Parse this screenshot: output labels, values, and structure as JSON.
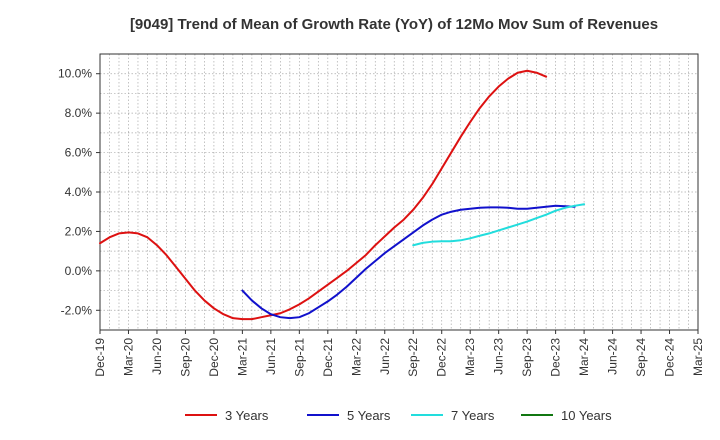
{
  "chart_data": {
    "type": "line",
    "title": "[9049]  Trend of Mean of Growth Rate (YoY) of 12Mo Mov Sum of Revenues",
    "xlabel": "",
    "ylabel": "",
    "x_tick_labels": [
      "Dec-19",
      "Mar-20",
      "Jun-20",
      "Sep-20",
      "Dec-20",
      "Mar-21",
      "Jun-21",
      "Sep-21",
      "Dec-21",
      "Mar-22",
      "Jun-22",
      "Sep-22",
      "Dec-22",
      "Mar-23",
      "Jun-23",
      "Sep-23",
      "Dec-23",
      "Mar-24",
      "Jun-24",
      "Sep-24",
      "Dec-24",
      "Mar-25"
    ],
    "y_ticks": [
      -2.0,
      0.0,
      2.0,
      4.0,
      6.0,
      8.0,
      10.0
    ],
    "y_tick_labels": [
      "-2.0%",
      "0.0%",
      "2.0%",
      "4.0%",
      "6.0%",
      "8.0%",
      "10.0%"
    ],
    "ylim": [
      -3.0,
      11.0
    ],
    "grid": true,
    "legend_position": "bottom",
    "series": [
      {
        "name": "3 Years",
        "color": "#dd1111",
        "points": [
          [
            0,
            1.4
          ],
          [
            1,
            1.7
          ],
          [
            2,
            1.9
          ],
          [
            3,
            1.95
          ],
          [
            4,
            1.9
          ],
          [
            5,
            1.7
          ],
          [
            6,
            1.3
          ],
          [
            7,
            0.8
          ],
          [
            8,
            0.2
          ],
          [
            9,
            -0.4
          ],
          [
            10,
            -1.0
          ],
          [
            11,
            -1.5
          ],
          [
            12,
            -1.9
          ],
          [
            13,
            -2.2
          ],
          [
            14,
            -2.4
          ],
          [
            15,
            -2.45
          ],
          [
            16,
            -2.45
          ],
          [
            17,
            -2.35
          ],
          [
            18,
            -2.25
          ],
          [
            19,
            -2.15
          ],
          [
            20,
            -1.95
          ],
          [
            21,
            -1.7
          ],
          [
            22,
            -1.4
          ],
          [
            23,
            -1.05
          ],
          [
            24,
            -0.7
          ],
          [
            25,
            -0.35
          ],
          [
            26,
            0.0
          ],
          [
            27,
            0.4
          ],
          [
            28,
            0.8
          ],
          [
            29,
            1.3
          ],
          [
            30,
            1.75
          ],
          [
            31,
            2.2
          ],
          [
            32,
            2.6
          ],
          [
            33,
            3.1
          ],
          [
            34,
            3.7
          ],
          [
            35,
            4.4
          ],
          [
            36,
            5.2
          ],
          [
            37,
            6.0
          ],
          [
            38,
            6.8
          ],
          [
            39,
            7.55
          ],
          [
            40,
            8.25
          ],
          [
            41,
            8.85
          ],
          [
            42,
            9.35
          ],
          [
            43,
            9.75
          ],
          [
            44,
            10.05
          ],
          [
            45,
            10.15
          ],
          [
            46,
            10.05
          ],
          [
            47,
            9.85
          ]
        ]
      },
      {
        "name": "5 Years",
        "color": "#1111cc",
        "points": [
          [
            15,
            -1.0
          ],
          [
            16,
            -1.5
          ],
          [
            17,
            -1.9
          ],
          [
            18,
            -2.2
          ],
          [
            19,
            -2.35
          ],
          [
            20,
            -2.4
          ],
          [
            21,
            -2.35
          ],
          [
            22,
            -2.15
          ],
          [
            23,
            -1.85
          ],
          [
            24,
            -1.55
          ],
          [
            25,
            -1.2
          ],
          [
            26,
            -0.8
          ],
          [
            27,
            -0.35
          ],
          [
            28,
            0.1
          ],
          [
            29,
            0.5
          ],
          [
            30,
            0.9
          ],
          [
            31,
            1.25
          ],
          [
            32,
            1.6
          ],
          [
            33,
            1.95
          ],
          [
            34,
            2.3
          ],
          [
            35,
            2.6
          ],
          [
            36,
            2.85
          ],
          [
            37,
            3.0
          ],
          [
            38,
            3.1
          ],
          [
            39,
            3.15
          ],
          [
            40,
            3.2
          ],
          [
            41,
            3.22
          ],
          [
            42,
            3.22
          ],
          [
            43,
            3.2
          ],
          [
            44,
            3.15
          ],
          [
            45,
            3.15
          ],
          [
            46,
            3.2
          ],
          [
            47,
            3.25
          ],
          [
            48,
            3.3
          ],
          [
            49,
            3.28
          ],
          [
            50,
            3.25
          ]
        ]
      },
      {
        "name": "7 Years",
        "color": "#22dddd",
        "points": [
          [
            33,
            1.3
          ],
          [
            34,
            1.42
          ],
          [
            35,
            1.48
          ],
          [
            36,
            1.5
          ],
          [
            37,
            1.5
          ],
          [
            38,
            1.55
          ],
          [
            39,
            1.65
          ],
          [
            40,
            1.78
          ],
          [
            41,
            1.9
          ],
          [
            42,
            2.05
          ],
          [
            43,
            2.2
          ],
          [
            44,
            2.35
          ],
          [
            45,
            2.5
          ],
          [
            46,
            2.68
          ],
          [
            47,
            2.85
          ],
          [
            48,
            3.05
          ],
          [
            49,
            3.2
          ],
          [
            50,
            3.3
          ],
          [
            51,
            3.38
          ]
        ]
      },
      {
        "name": "10 Years",
        "color": "#117711",
        "points": []
      }
    ]
  }
}
